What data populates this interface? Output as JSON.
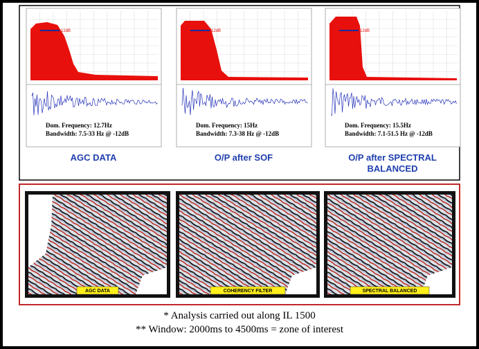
{
  "spectra": [
    {
      "marker_label": "12dB",
      "dominant_frequency": "Dom. Frequency: 12.7Hz",
      "bandwidth": "Bandwidth: 7.5-33 Hz @ -12dB",
      "caption": "AGC DATA"
    },
    {
      "marker_label": "12dB",
      "dominant_frequency": "Dom. Frequency: 15Hz",
      "bandwidth": "Bandwidth: 7.3-38 Hz @ -12dB",
      "caption": "O/P after SOF"
    },
    {
      "marker_label": "12dB",
      "dominant_frequency": "Dom. Frequency: 15.5Hz",
      "bandwidth": "Bandwidth: 7.1-51.5 Hz @ -12dB",
      "caption": "O/P after SPECTRAL BALANCED"
    }
  ],
  "sections": [
    {
      "label": "AGC DATA"
    },
    {
      "label": "COHERENCY FILTER"
    },
    {
      "label": "SPECTRAL BALANCED"
    }
  ],
  "notes": [
    "* Analysis carried out along IL 1500",
    "** Window: 2000ms to 4500ms = zone of interest"
  ]
}
